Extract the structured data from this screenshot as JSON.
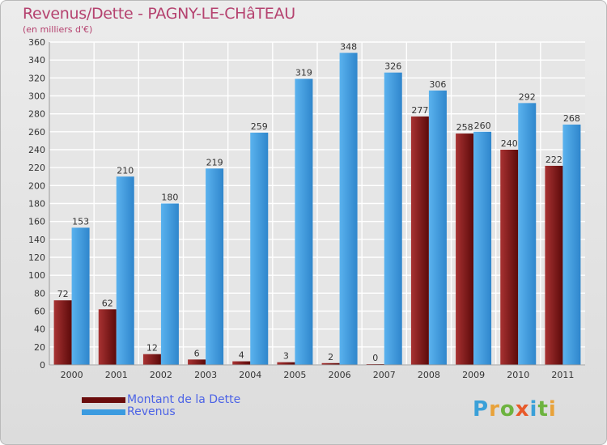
{
  "chart_data": {
    "type": "bar",
    "title": "Revenus/Dette - PAGNY-LE-CHâTEAU",
    "subtitle": "(en milliers d'€)",
    "categories": [
      "2000",
      "2001",
      "2002",
      "2003",
      "2004",
      "2005",
      "2006",
      "2007",
      "2008",
      "2009",
      "2010",
      "2011"
    ],
    "series": [
      {
        "name": "Montant de la Dette",
        "color": "#7a1414",
        "values": [
          72,
          62,
          12,
          6,
          4,
          3,
          2,
          0,
          277,
          258,
          240,
          222
        ]
      },
      {
        "name": "Revenus",
        "color": "#3b9be0",
        "values": [
          153,
          210,
          180,
          219,
          259,
          319,
          348,
          326,
          306,
          260,
          292,
          268
        ]
      }
    ],
    "ylim": [
      0,
      360
    ],
    "yticks": [
      0,
      20,
      40,
      60,
      80,
      100,
      120,
      140,
      160,
      180,
      200,
      220,
      240,
      260,
      280,
      300,
      320,
      340,
      360
    ],
    "grid": true,
    "legend_position": "bottom-left"
  },
  "logo": {
    "letters": [
      "P",
      "r",
      "o",
      "x",
      "i",
      "t",
      "i"
    ],
    "colors": [
      "#3aa0d8",
      "#e8a23a",
      "#6db33f",
      "#e85a2a",
      "#3aa0d8",
      "#6db33f",
      "#e8a23a"
    ]
  }
}
